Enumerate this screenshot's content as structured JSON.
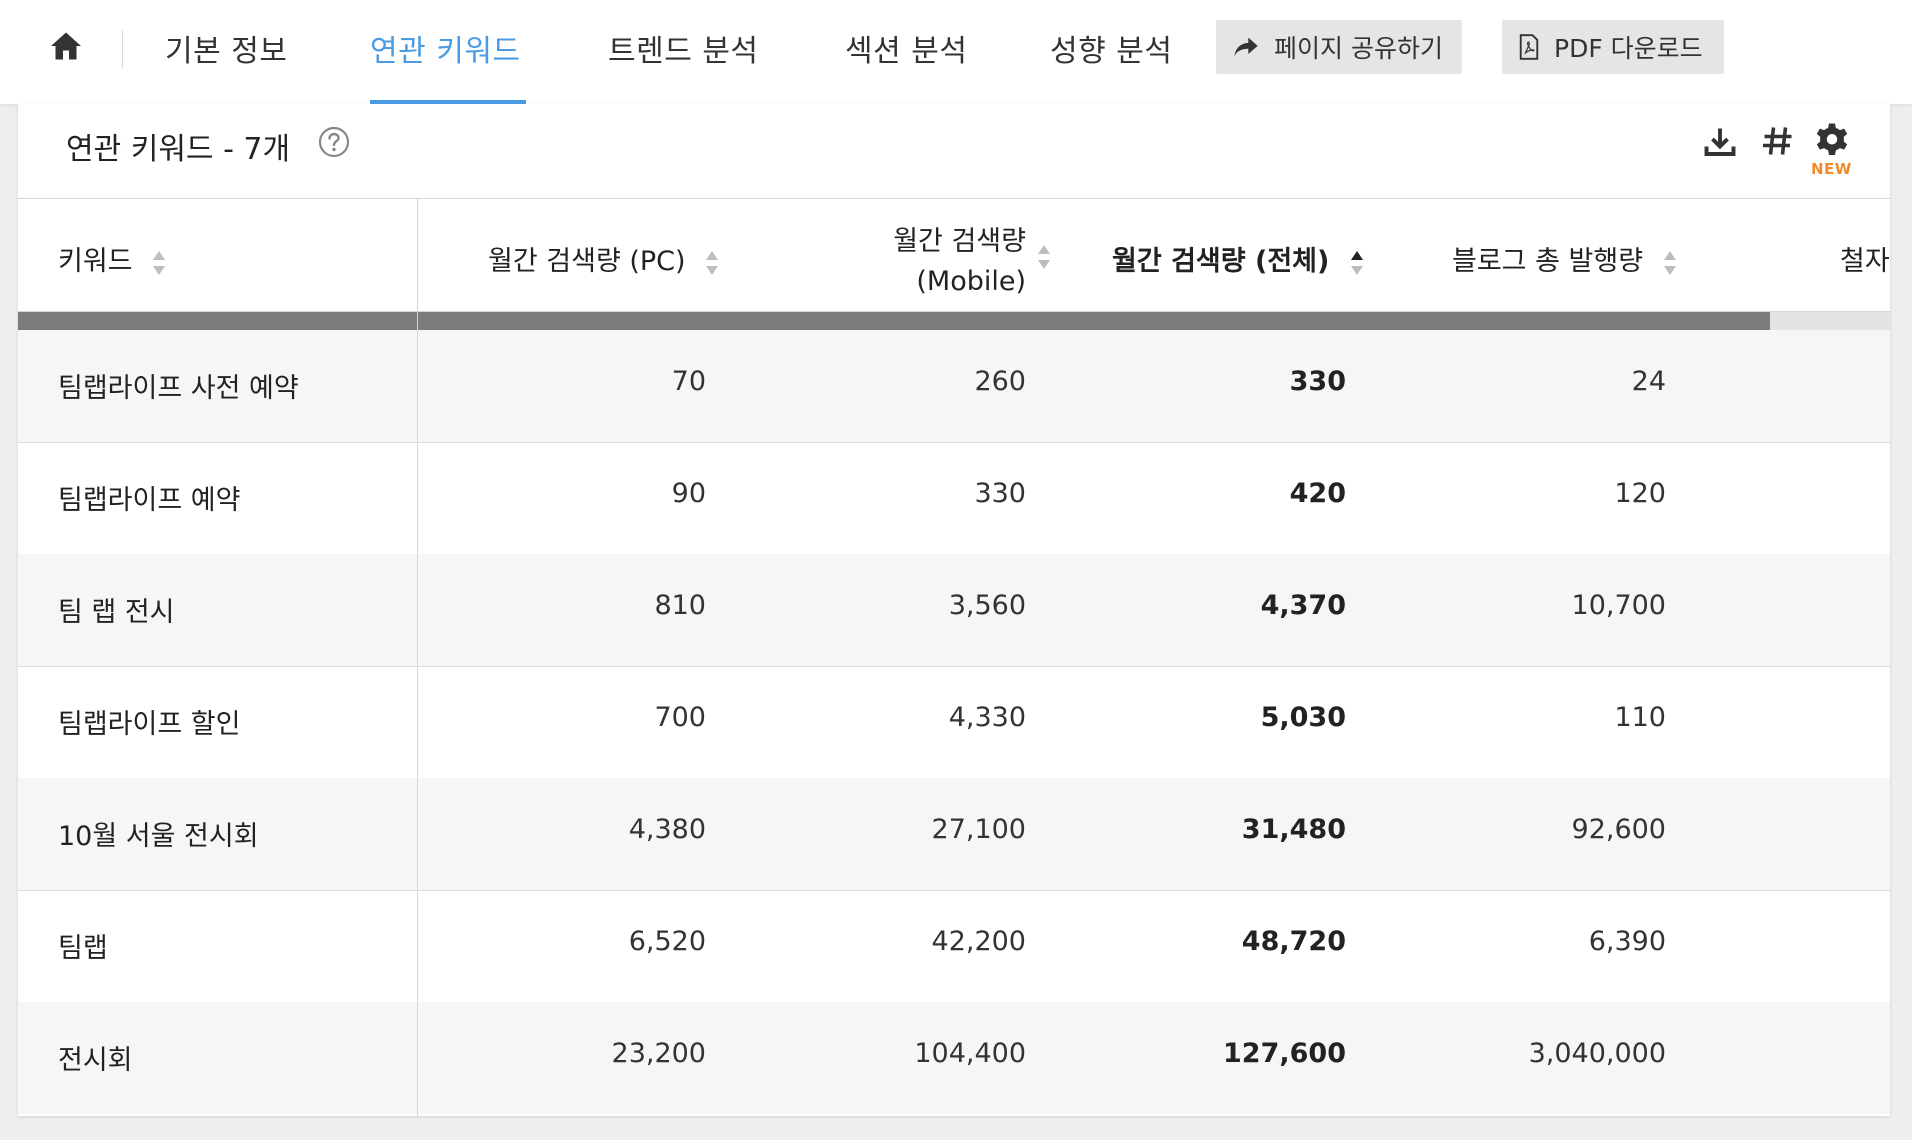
{
  "nav": {
    "home_icon": "home-icon",
    "tabs": [
      {
        "label": "기본 정보"
      },
      {
        "label": "연관 키워드"
      },
      {
        "label": "트렌드 분석"
      },
      {
        "label": "섹션 분석"
      },
      {
        "label": "성향 분석"
      }
    ],
    "active_tab": "연관 키워드",
    "share_button": "페이지 공유하기",
    "pdf_button": "PDF 다운로드"
  },
  "panel": {
    "title": "연관 키워드 - 7개",
    "new_badge": "NEW",
    "icons": [
      "help-icon",
      "download-icon",
      "hash-icon",
      "gear-icon"
    ]
  },
  "table": {
    "columns": {
      "keyword": "키워드",
      "pc": "월간 검색량 (PC)",
      "mobile_line1": "월간 검색량",
      "mobile_line2": "(Mobile)",
      "total": "월간 검색량 (전체)",
      "blog": "블로그 총 발행량",
      "cut": "철자"
    },
    "sorted_column": "월간 검색량 (전체)",
    "rows": [
      {
        "keyword": "팀랩라이프 사전 예약",
        "pc": "70",
        "mobile": "260",
        "total": "330",
        "blog": "24"
      },
      {
        "keyword": "팀랩라이프 예약",
        "pc": "90",
        "mobile": "330",
        "total": "420",
        "blog": "120"
      },
      {
        "keyword": "팀 랩 전시",
        "pc": "810",
        "mobile": "3,560",
        "total": "4,370",
        "blog": "10,700"
      },
      {
        "keyword": "팀랩라이프 할인",
        "pc": "700",
        "mobile": "4,330",
        "total": "5,030",
        "blog": "110"
      },
      {
        "keyword": "10월 서울 전시회",
        "pc": "4,380",
        "mobile": "27,100",
        "total": "31,480",
        "blog": "92,600"
      },
      {
        "keyword": "팀랩",
        "pc": "6,520",
        "mobile": "42,200",
        "total": "48,720",
        "blog": "6,390"
      },
      {
        "keyword": "전시회",
        "pc": "23,200",
        "mobile": "104,400",
        "total": "127,600",
        "blog": "3,040,000"
      }
    ]
  },
  "colors": {
    "accent": "#4a9be6",
    "new_badge": "#f08a2a",
    "scroll_thumb": "#7b7b7b"
  }
}
